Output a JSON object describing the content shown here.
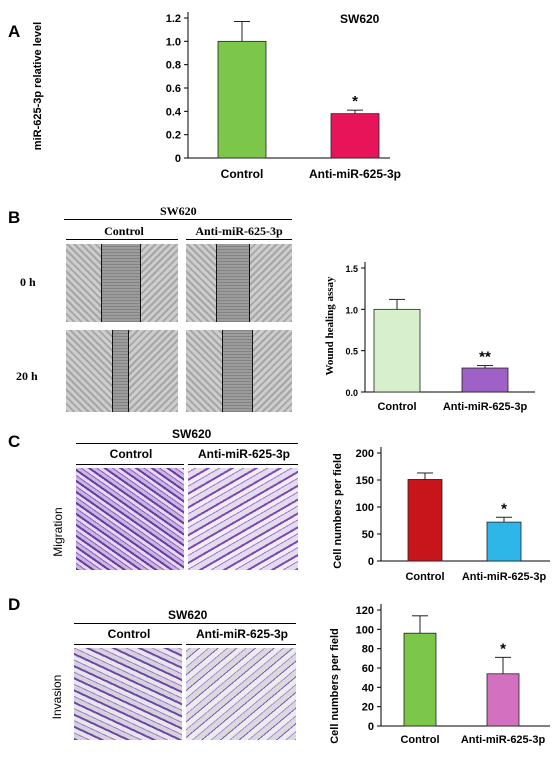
{
  "panels": {
    "A": {
      "letter": "A",
      "title": "SW620",
      "chart_data": {
        "type": "bar",
        "categories": [
          "Control",
          "Anti-miR-625-3p"
        ],
        "values": [
          1.0,
          0.38
        ],
        "errors": [
          0.17,
          0.03
        ],
        "significance": [
          "",
          "*"
        ],
        "colors": [
          "#7cc64a",
          "#e8145a"
        ],
        "ylabel": "miR-625-3p relative level",
        "ylim": [
          0,
          1.2
        ],
        "yticks": [
          "0",
          "0.2",
          "0.4",
          "0.6",
          "0.8",
          "1.0",
          "1.2"
        ]
      }
    },
    "B": {
      "letter": "B",
      "title": "SW620",
      "columns": [
        "Control",
        "Anti-miR-625-3p"
      ],
      "rows": [
        "0 h",
        "20 h"
      ],
      "chart_data": {
        "type": "bar",
        "categories": [
          "Control",
          "Anti-miR-625-3p"
        ],
        "values": [
          1.0,
          0.29
        ],
        "errors": [
          0.12,
          0.03
        ],
        "significance": [
          "",
          "**"
        ],
        "colors": [
          "#d8efcc",
          "#9f61c6"
        ],
        "ylabel": "Wound healing assay",
        "ylim": [
          0,
          1.5
        ],
        "yticks": [
          "0.0",
          "0.5",
          "1.0",
          "1.5"
        ]
      }
    },
    "C": {
      "letter": "C",
      "title": "SW620",
      "columns": [
        "Control",
        "Anti-miR-625-3p"
      ],
      "row_label": "Migration",
      "chart_data": {
        "type": "bar",
        "categories": [
          "Control",
          "Anti-miR-625-3p"
        ],
        "values": [
          151,
          72
        ],
        "errors": [
          12,
          9
        ],
        "significance": [
          "",
          "*"
        ],
        "colors": [
          "#c8141b",
          "#2fb6e8"
        ],
        "ylabel": "Cell numbers per field",
        "ylim": [
          0,
          200
        ],
        "yticks": [
          "0",
          "50",
          "100",
          "150",
          "200"
        ]
      }
    },
    "D": {
      "letter": "D",
      "title": "SW620",
      "columns": [
        "Control",
        "Anti-miR-625-3p"
      ],
      "row_label": "Invasion",
      "chart_data": {
        "type": "bar",
        "categories": [
          "Control",
          "Anti-miR-625-3p"
        ],
        "values": [
          96,
          54
        ],
        "errors": [
          18,
          17
        ],
        "significance": [
          "",
          "*"
        ],
        "colors": [
          "#7cc64a",
          "#d371c0"
        ],
        "ylabel": "Cell numbers per field",
        "ylim": [
          0,
          120
        ],
        "yticks": [
          "0",
          "20",
          "40",
          "60",
          "80",
          "100",
          "120"
        ]
      }
    }
  }
}
